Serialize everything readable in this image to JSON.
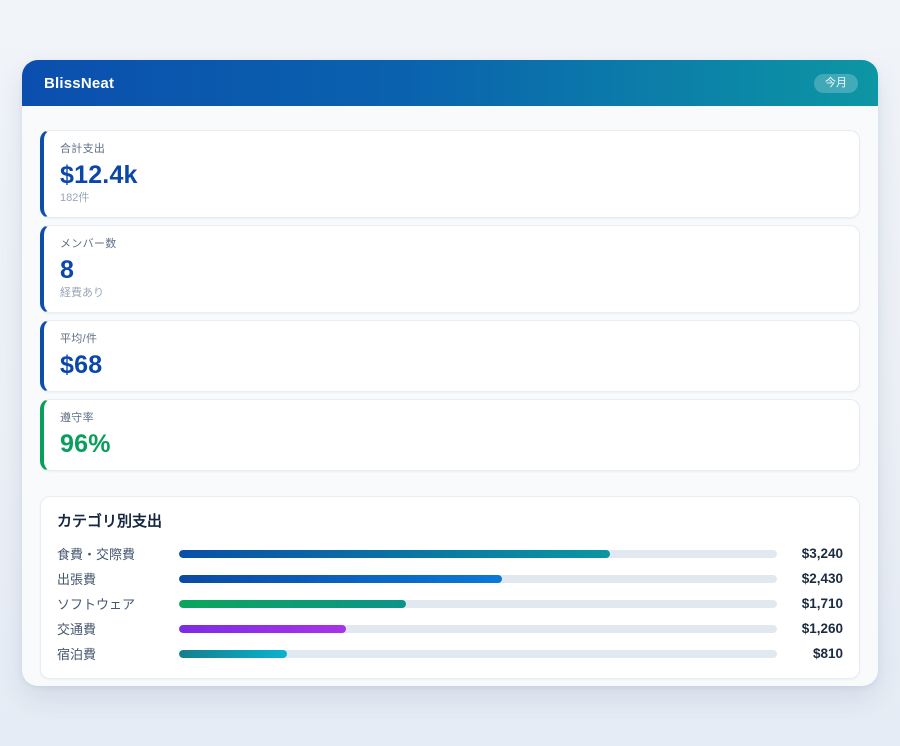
{
  "app": {
    "name": "BlissNeat",
    "period_badge": "今月"
  },
  "colors": {
    "header_gradient_start": "#0b4fae",
    "header_gradient_end": "#0d96a4",
    "accent_blue": "#0b4fa8",
    "accent_green": "#089e5c",
    "value_blue": "#0b46aa",
    "value_green": "#089e5c",
    "bar_track": "#e2e8f0"
  },
  "stats": [
    {
      "label": "合計支出",
      "value": "$12.4k",
      "sub": "182件",
      "accent": "#0b4fa8",
      "value_color": "#0b46aa"
    },
    {
      "label": "メンバー数",
      "value": "8",
      "sub": "経費あり",
      "accent": "#0b4fa8",
      "value_color": "#0b46aa"
    },
    {
      "label": "平均/件",
      "value": "$68",
      "sub": "",
      "accent": "#0b4fa8",
      "value_color": "#0b46aa"
    },
    {
      "label": "遵守率",
      "value": "96%",
      "sub": "",
      "accent": "#089e5c",
      "value_color": "#089e5c"
    }
  ],
  "category_section": {
    "title": "カテゴリ別支出",
    "rows": [
      {
        "label": "食費・交際費",
        "amount": "$3,240",
        "percent": 72,
        "gradient_start": "#0b4fa8",
        "gradient_end": "#0a96a0"
      },
      {
        "label": "出張費",
        "amount": "$2,430",
        "percent": 54,
        "gradient_start": "#0b4aa2",
        "gradient_end": "#0b78d8"
      },
      {
        "label": "ソフトウェア",
        "amount": "$1,710",
        "percent": 38,
        "gradient_start": "#0ba55c",
        "gradient_end": "#0d9488"
      },
      {
        "label": "交通費",
        "amount": "$1,260",
        "percent": 28,
        "gradient_start": "#7c2ce4",
        "gradient_end": "#a833ea"
      },
      {
        "label": "宿泊費",
        "amount": "$810",
        "percent": 18,
        "gradient_start": "#157e8c",
        "gradient_end": "#0cb2cf"
      }
    ]
  },
  "chart_data": {
    "type": "bar",
    "orientation": "horizontal",
    "title": "カテゴリ別支出",
    "categories": [
      "食費・交際費",
      "出張費",
      "ソフトウェア",
      "交通費",
      "宿泊費"
    ],
    "values": [
      3240,
      2430,
      1710,
      1260,
      810
    ],
    "value_labels": [
      "$3,240",
      "$2,430",
      "$1,710",
      "$1,260",
      "$810"
    ],
    "xlim": [
      0,
      4500
    ],
    "grid": false,
    "legend": false
  }
}
